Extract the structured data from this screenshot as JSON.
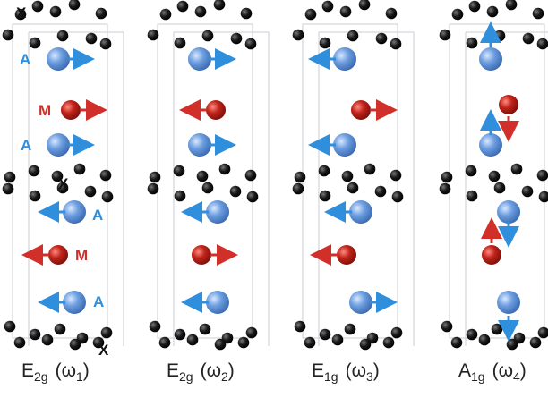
{
  "colors": {
    "atom_a": "#5b8fd6",
    "atom_m": "#b81d14",
    "atom_x": "#111111",
    "arrow_a": "#2f8fdc",
    "arrow_m": "#d1302a",
    "cell_line": "#c9cdd6",
    "label_a": "#2f8fdc",
    "label_m": "#c8322a",
    "label_x": "#111111"
  },
  "atom_labels": {
    "a": "A",
    "m": "M",
    "x": "X"
  },
  "modes": [
    {
      "id": "e2g-1",
      "symbol": "E",
      "sub": "2g",
      "omega": "(ω",
      "omega_sub": "1",
      "close": ")",
      "displacements": {
        "A_upper": "+x",
        "M_upper": "+x",
        "A_lower": "-x",
        "M_lower": "-x"
      }
    },
    {
      "id": "e2g-2",
      "symbol": "E",
      "sub": "2g",
      "omega": "(ω",
      "omega_sub": "2",
      "close": ")",
      "displacements": {
        "A_upper": "+x",
        "M_upper": "-x",
        "A_lower": "-x",
        "M_lower": "+x"
      }
    },
    {
      "id": "e1g-3",
      "symbol": "E",
      "sub": "1g",
      "omega": "(ω",
      "omega_sub": "3",
      "close": ")",
      "displacements": {
        "A_upper": "-x",
        "M_upper": "+x",
        "A_lower": "-x",
        "M_lower": "-x"
      }
    },
    {
      "id": "a1g-4",
      "symbol": "A",
      "sub": "1g",
      "omega": "(ω",
      "omega_sub": "4",
      "close": ")",
      "displacements": {
        "A_upper": "vertical",
        "M_upper": "vertical",
        "A_lower": "vertical",
        "M_lower": "vertical"
      }
    }
  ]
}
